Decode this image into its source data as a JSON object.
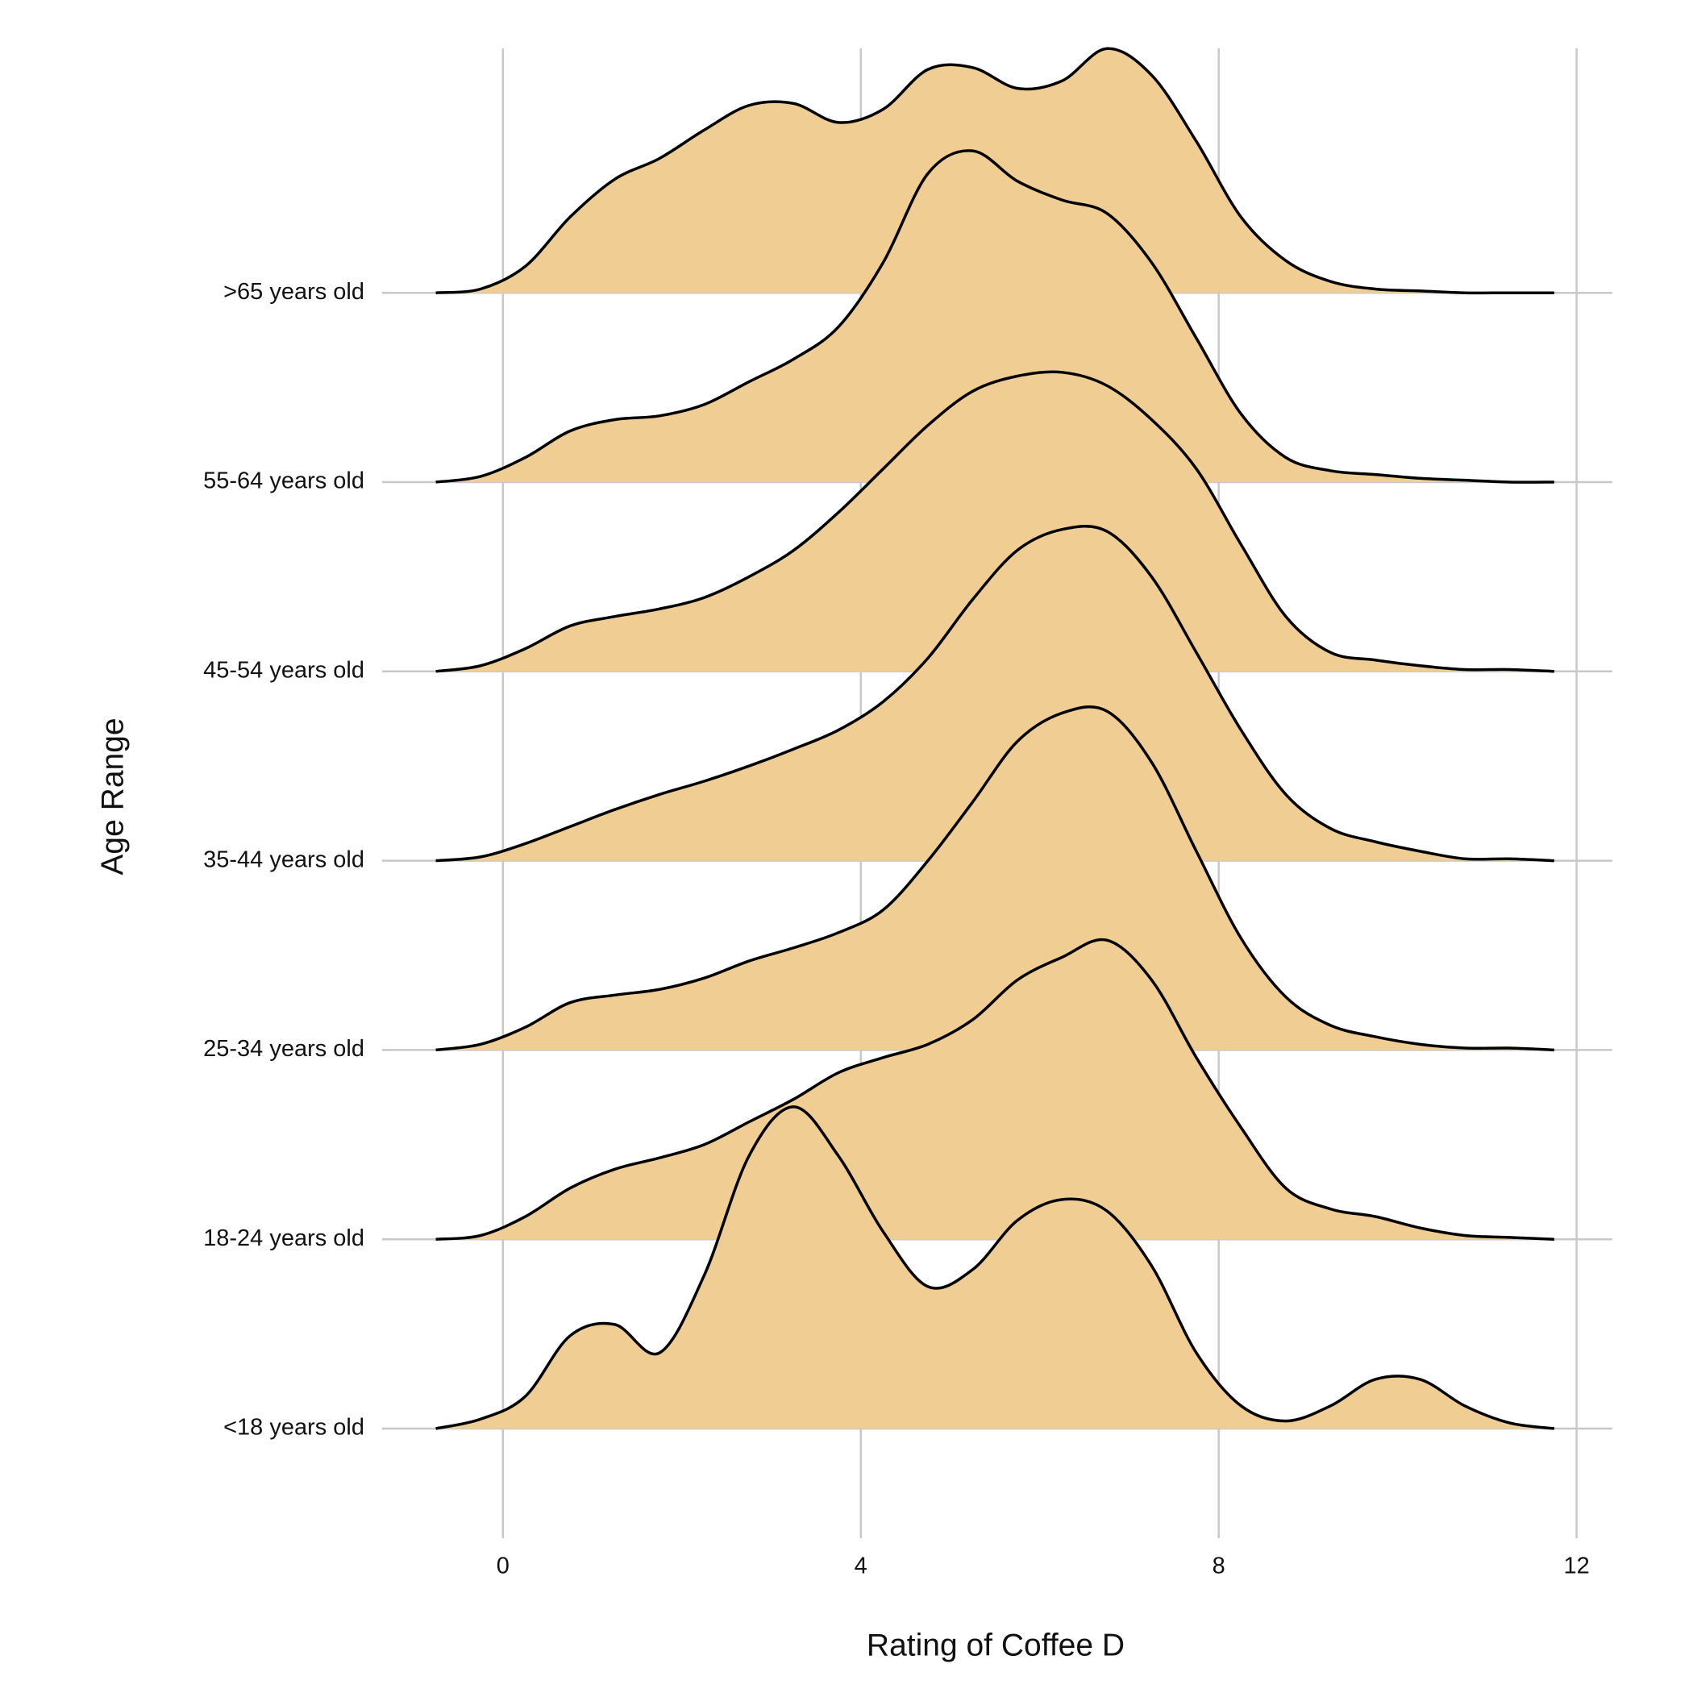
{
  "chart_data": {
    "type": "ridgeline",
    "xlabel": "Rating of Coffee D",
    "ylabel": "Age Range",
    "xlim": [
      -1.35,
      12.4
    ],
    "xticks": [
      0,
      4,
      8,
      12
    ],
    "grid": true,
    "color": "#f0cd92",
    "x": [
      -0.75,
      -0.25,
      0.25,
      0.75,
      1.25,
      1.75,
      2.25,
      2.75,
      3.25,
      3.75,
      4.25,
      4.75,
      5.25,
      5.75,
      6.25,
      6.75,
      7.25,
      7.75,
      8.25,
      8.75,
      9.25,
      9.75,
      10.25,
      10.75,
      11.25,
      11.75
    ],
    "series": [
      {
        "name": "<18 years old",
        "values": [
          0,
          0.05,
          0.17,
          0.49,
          0.55,
          0.4,
          0.81,
          1.44,
          1.7,
          1.44,
          1.04,
          0.75,
          0.84,
          1.1,
          1.21,
          1.15,
          0.86,
          0.4,
          0.12,
          0.04,
          0.12,
          0.26,
          0.26,
          0.12,
          0.03,
          0
        ]
      },
      {
        "name": "18-24 years old",
        "values": [
          0,
          0.02,
          0.12,
          0.27,
          0.37,
          0.43,
          0.5,
          0.62,
          0.74,
          0.88,
          0.96,
          1.03,
          1.16,
          1.37,
          1.49,
          1.58,
          1.37,
          0.96,
          0.59,
          0.27,
          0.16,
          0.12,
          0.06,
          0.02,
          0.01,
          0
        ]
      },
      {
        "name": "25-34 years old",
        "values": [
          0,
          0.03,
          0.12,
          0.25,
          0.29,
          0.32,
          0.38,
          0.47,
          0.54,
          0.62,
          0.74,
          1.0,
          1.31,
          1.63,
          1.78,
          1.79,
          1.52,
          1.05,
          0.59,
          0.28,
          0.13,
          0.07,
          0.03,
          0.01,
          0.01,
          0
        ]
      },
      {
        "name": "35-44 years old",
        "values": [
          0,
          0.02,
          0.09,
          0.18,
          0.27,
          0.35,
          0.42,
          0.5,
          0.59,
          0.69,
          0.84,
          1.07,
          1.38,
          1.64,
          1.75,
          1.74,
          1.5,
          1.1,
          0.69,
          0.35,
          0.17,
          0.1,
          0.05,
          0.01,
          0.01,
          0
        ]
      },
      {
        "name": "45-54 years old",
        "values": [
          0,
          0.03,
          0.12,
          0.24,
          0.29,
          0.33,
          0.39,
          0.5,
          0.64,
          0.84,
          1.07,
          1.3,
          1.48,
          1.56,
          1.58,
          1.51,
          1.33,
          1.07,
          0.67,
          0.29,
          0.1,
          0.06,
          0.03,
          0.01,
          0.01,
          0
        ]
      },
      {
        "name": "55-64 years old",
        "values": [
          0,
          0.03,
          0.13,
          0.27,
          0.33,
          0.35,
          0.41,
          0.53,
          0.65,
          0.82,
          1.16,
          1.63,
          1.75,
          1.59,
          1.49,
          1.42,
          1.16,
          0.76,
          0.36,
          0.13,
          0.06,
          0.04,
          0.02,
          0.01,
          0,
          0
        ]
      },
      {
        "name": ">65 years old",
        "values": [
          0,
          0.02,
          0.14,
          0.4,
          0.6,
          0.71,
          0.86,
          0.99,
          1.0,
          0.9,
          0.97,
          1.18,
          1.19,
          1.08,
          1.12,
          1.29,
          1.15,
          0.8,
          0.4,
          0.17,
          0.06,
          0.02,
          0.01,
          0,
          0,
          0
        ]
      }
    ]
  }
}
